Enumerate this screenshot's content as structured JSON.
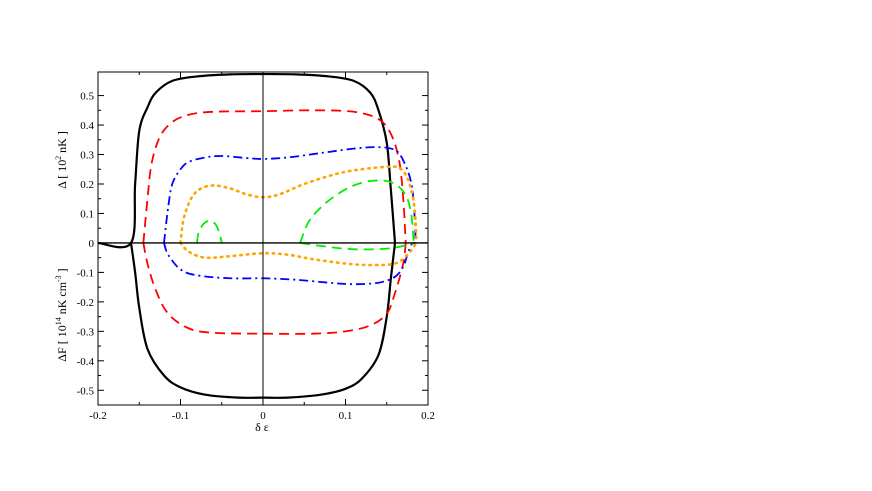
{
  "chart_data": {
    "type": "line",
    "xlabel": "δ ε",
    "ylabel_upper": {
      "prefix": "Δ [ 10",
      "sup": "2",
      "suffix": " nK ]"
    },
    "ylabel_lower": {
      "prefix": "ΔF [ 10",
      "sup": "14",
      "suffix": " nK cm",
      "sup2": "-3",
      "close": " ]"
    },
    "xlim": [
      -0.2,
      0.2
    ],
    "ylim": [
      -0.55,
      0.58
    ],
    "xticks": [
      -0.2,
      -0.1,
      0,
      0.1,
      0.2
    ],
    "xtick_labels": [
      "-0.2",
      "-0.1",
      "0",
      "0.1",
      "0.2"
    ],
    "yticks": [
      -0.5,
      -0.4,
      -0.3,
      -0.2,
      -0.1,
      0,
      0.1,
      0.2,
      0.3,
      0.4,
      0.5
    ],
    "ytick_labels": [
      "-0.5",
      "-0.4",
      "-0.3",
      "-0.2",
      "-0.1",
      "0",
      "0.1",
      "0.2",
      "0.3",
      "0.4",
      "0.5"
    ],
    "grid": false,
    "legend": "none",
    "series": [
      {
        "color": "#000000",
        "style": "solid",
        "width": 2.2,
        "gap_upper": [
          [
            -0.2,
            0
          ],
          [
            -0.16,
            0
          ],
          [
            -0.155,
            0.2
          ],
          [
            -0.15,
            0.38
          ],
          [
            -0.14,
            0.46
          ],
          [
            -0.13,
            0.51
          ],
          [
            -0.11,
            0.55
          ],
          [
            -0.08,
            0.565
          ],
          [
            -0.04,
            0.572
          ],
          [
            0,
            0.573
          ],
          [
            0.04,
            0.572
          ],
          [
            0.08,
            0.565
          ],
          [
            0.11,
            0.55
          ],
          [
            0.13,
            0.51
          ],
          [
            0.14,
            0.45
          ],
          [
            0.15,
            0.34
          ],
          [
            0.155,
            0.18
          ],
          [
            0.16,
            0
          ]
        ],
        "energy_lower": [
          [
            -0.16,
            0
          ],
          [
            -0.155,
            -0.1
          ],
          [
            -0.15,
            -0.22
          ],
          [
            -0.14,
            -0.36
          ],
          [
            -0.12,
            -0.45
          ],
          [
            -0.1,
            -0.49
          ],
          [
            -0.07,
            -0.515
          ],
          [
            -0.03,
            -0.525
          ],
          [
            0,
            -0.525
          ],
          [
            0.03,
            -0.525
          ],
          [
            0.07,
            -0.515
          ],
          [
            0.1,
            -0.495
          ],
          [
            0.12,
            -0.46
          ],
          [
            0.14,
            -0.38
          ],
          [
            0.15,
            -0.25
          ],
          [
            0.155,
            -0.12
          ],
          [
            0.16,
            0
          ]
        ]
      },
      {
        "color": "#ff0000",
        "style": "dashed",
        "width": 1.8,
        "gap_upper": [
          [
            -0.145,
            0
          ],
          [
            -0.14,
            0.15
          ],
          [
            -0.135,
            0.27
          ],
          [
            -0.125,
            0.36
          ],
          [
            -0.11,
            0.41
          ],
          [
            -0.09,
            0.435
          ],
          [
            -0.06,
            0.445
          ],
          [
            0,
            0.447
          ],
          [
            0.06,
            0.45
          ],
          [
            0.11,
            0.445
          ],
          [
            0.14,
            0.42
          ],
          [
            0.155,
            0.37
          ],
          [
            0.165,
            0.28
          ],
          [
            0.17,
            0.15
          ],
          [
            0.173,
            0
          ]
        ],
        "energy_lower": [
          [
            -0.145,
            0
          ],
          [
            -0.14,
            -0.07
          ],
          [
            -0.13,
            -0.16
          ],
          [
            -0.115,
            -0.24
          ],
          [
            -0.09,
            -0.29
          ],
          [
            -0.06,
            -0.305
          ],
          [
            0,
            -0.308
          ],
          [
            0.06,
            -0.308
          ],
          [
            0.1,
            -0.3
          ],
          [
            0.13,
            -0.28
          ],
          [
            0.15,
            -0.24
          ],
          [
            0.16,
            -0.17
          ],
          [
            0.17,
            -0.07
          ],
          [
            0.173,
            0
          ]
        ]
      },
      {
        "color": "#0000ff",
        "style": "dashdot",
        "width": 1.8,
        "gap_upper": [
          [
            -0.12,
            0
          ],
          [
            -0.115,
            0.12
          ],
          [
            -0.11,
            0.2
          ],
          [
            -0.1,
            0.25
          ],
          [
            -0.09,
            0.275
          ],
          [
            -0.07,
            0.29
          ],
          [
            -0.05,
            0.295
          ],
          [
            -0.02,
            0.288
          ],
          [
            0,
            0.285
          ],
          [
            0.03,
            0.29
          ],
          [
            0.07,
            0.305
          ],
          [
            0.11,
            0.32
          ],
          [
            0.14,
            0.325
          ],
          [
            0.16,
            0.315
          ],
          [
            0.17,
            0.28
          ],
          [
            0.18,
            0.2
          ],
          [
            0.184,
            0.08
          ],
          [
            0.185,
            0
          ]
        ],
        "energy_lower": [
          [
            -0.12,
            0
          ],
          [
            -0.115,
            -0.04
          ],
          [
            -0.1,
            -0.09
          ],
          [
            -0.08,
            -0.11
          ],
          [
            -0.04,
            -0.12
          ],
          [
            0,
            -0.12
          ],
          [
            0.04,
            -0.125
          ],
          [
            0.08,
            -0.135
          ],
          [
            0.11,
            -0.14
          ],
          [
            0.14,
            -0.135
          ],
          [
            0.16,
            -0.115
          ],
          [
            0.17,
            -0.08
          ],
          [
            0.175,
            -0.04
          ],
          [
            0.18,
            -0.005
          ],
          [
            0.185,
            0
          ]
        ]
      },
      {
        "color": "#ffa500",
        "style": "dotted",
        "width": 2.6,
        "gap_upper": [
          [
            -0.1,
            0
          ],
          [
            -0.097,
            0.07
          ],
          [
            -0.092,
            0.12
          ],
          [
            -0.085,
            0.16
          ],
          [
            -0.075,
            0.185
          ],
          [
            -0.06,
            0.195
          ],
          [
            -0.04,
            0.185
          ],
          [
            -0.02,
            0.165
          ],
          [
            0,
            0.155
          ],
          [
            0.02,
            0.165
          ],
          [
            0.05,
            0.2
          ],
          [
            0.09,
            0.235
          ],
          [
            0.12,
            0.25
          ],
          [
            0.15,
            0.258
          ],
          [
            0.165,
            0.255
          ],
          [
            0.175,
            0.22
          ],
          [
            0.182,
            0.15
          ],
          [
            0.185,
            0.07
          ],
          [
            0.186,
            0
          ]
        ],
        "energy_lower": [
          [
            -0.1,
            0
          ],
          [
            -0.09,
            -0.03
          ],
          [
            -0.07,
            -0.05
          ],
          [
            -0.04,
            -0.045
          ],
          [
            0,
            -0.035
          ],
          [
            0.03,
            -0.04
          ],
          [
            0.06,
            -0.055
          ],
          [
            0.1,
            -0.07
          ],
          [
            0.13,
            -0.075
          ],
          [
            0.16,
            -0.07
          ],
          [
            0.175,
            -0.04
          ],
          [
            0.183,
            -0.012
          ],
          [
            0.186,
            0
          ]
        ]
      },
      {
        "color": "#00ee00",
        "style": "dashed",
        "width": 1.8,
        "gap_upper": [
          [
            -0.08,
            0
          ],
          [
            -0.078,
            0.035
          ],
          [
            -0.072,
            0.065
          ],
          [
            -0.065,
            0.075
          ],
          [
            -0.058,
            0.065
          ],
          [
            -0.053,
            0.035
          ],
          [
            -0.05,
            0
          ]
        ],
        "gap_upper_2": [
          [
            0.045,
            0
          ],
          [
            0.055,
            0.07
          ],
          [
            0.07,
            0.12
          ],
          [
            0.09,
            0.165
          ],
          [
            0.11,
            0.195
          ],
          [
            0.13,
            0.21
          ],
          [
            0.15,
            0.21
          ],
          [
            0.165,
            0.19
          ],
          [
            0.175,
            0.15
          ],
          [
            0.18,
            0.09
          ],
          [
            0.182,
            0.03
          ],
          [
            0.183,
            0
          ]
        ],
        "energy_lower": [
          [
            0.045,
            0
          ],
          [
            0.07,
            -0.01
          ],
          [
            0.1,
            -0.02
          ],
          [
            0.13,
            -0.022
          ],
          [
            0.155,
            -0.018
          ],
          [
            0.17,
            -0.01
          ],
          [
            0.183,
            0
          ]
        ]
      }
    ]
  }
}
